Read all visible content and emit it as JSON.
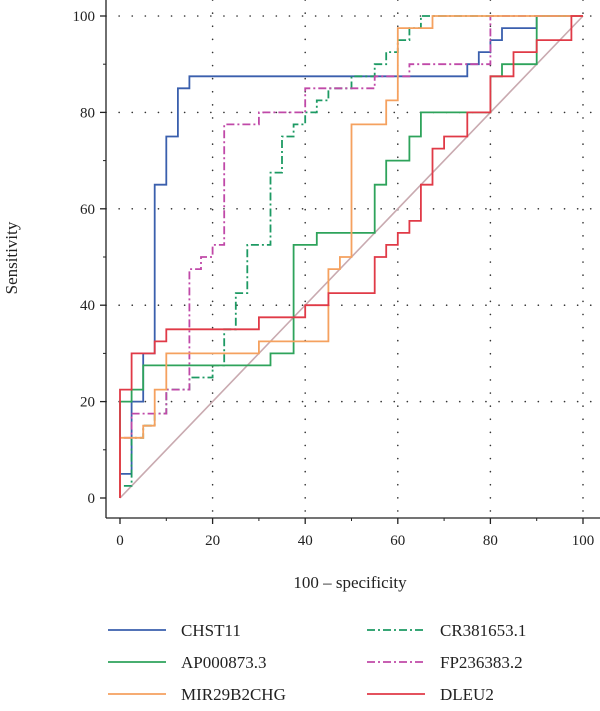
{
  "chart_data": {
    "type": "line",
    "title": "",
    "xlabel": "100 – specificity",
    "ylabel": "Sensitivity",
    "xlim": [
      0,
      100
    ],
    "ylim": [
      0,
      100
    ],
    "xticks": [
      0,
      20,
      40,
      60,
      80,
      100
    ],
    "yticks": [
      0,
      20,
      40,
      60,
      80,
      100
    ],
    "xtick_labels": [
      "0",
      "20",
      "40",
      "60",
      "80",
      "100"
    ],
    "ytick_labels": [
      "0",
      "20",
      "40",
      "60",
      "80",
      "100"
    ],
    "grid": "dotted",
    "legend_position": "bottom",
    "reference_line": {
      "x": [
        0,
        100
      ],
      "y": [
        0,
        100
      ],
      "color": "#c9aab0"
    },
    "series": [
      {
        "name": "CHST11",
        "color": "#3a5fad",
        "dash": "solid",
        "x": [
          0,
          0,
          2.5,
          2.5,
          5,
          5,
          7.5,
          7.5,
          10,
          10,
          12.5,
          12.5,
          15,
          15,
          75,
          75,
          77.5,
          77.5,
          80,
          80,
          82.5,
          82.5,
          90,
          90,
          100
        ],
        "y": [
          0,
          5,
          5,
          20,
          20,
          30,
          30,
          65,
          65,
          75,
          75,
          85,
          85,
          87.5,
          87.5,
          90,
          90,
          92.5,
          92.5,
          95,
          95,
          97.5,
          97.5,
          100,
          100
        ]
      },
      {
        "name": "CR381653.1",
        "color": "#1d9a63",
        "dash": "8 3 2 3",
        "x": [
          0,
          0,
          2.5,
          2.5,
          5,
          5,
          7.5,
          7.5,
          10,
          10,
          15,
          15,
          20,
          20,
          22.5,
          22.5,
          25,
          25,
          27.5,
          27.5,
          32.5,
          32.5,
          35,
          35,
          37.5,
          37.5,
          40,
          40,
          42.5,
          42.5,
          45,
          45,
          50,
          50,
          55,
          55,
          57.5,
          57.5,
          60,
          60,
          62.5,
          62.5,
          65,
          65,
          70,
          70,
          100
        ],
        "y": [
          0,
          2.5,
          2.5,
          12.5,
          12.5,
          15,
          15,
          17.5,
          17.5,
          22.5,
          22.5,
          25,
          25,
          27.5,
          27.5,
          35,
          35,
          42.5,
          42.5,
          52.5,
          52.5,
          67.5,
          67.5,
          75,
          75,
          77.5,
          77.5,
          80,
          80,
          82.5,
          82.5,
          85,
          85,
          87.5,
          87.5,
          90,
          90,
          92.5,
          92.5,
          95,
          95,
          97.5,
          97.5,
          100,
          100,
          100,
          100
        ]
      },
      {
        "name": "AP000873.3",
        "color": "#2ea35b",
        "dash": "solid",
        "x": [
          0,
          0,
          2.5,
          2.5,
          5,
          5,
          32.5,
          32.5,
          37.5,
          37.5,
          42.5,
          42.5,
          55,
          55,
          57.5,
          57.5,
          62.5,
          62.5,
          65,
          65,
          80,
          80,
          82.5,
          82.5,
          90,
          90,
          100
        ],
        "y": [
          0,
          20,
          20,
          22.5,
          22.5,
          27.5,
          27.5,
          30,
          30,
          52.5,
          52.5,
          55,
          55,
          65,
          65,
          70,
          70,
          75,
          75,
          80,
          80,
          87.5,
          87.5,
          90,
          90,
          100,
          100
        ]
      },
      {
        "name": "FP236383.2",
        "color": "#c049a8",
        "dash": "8 3 2 3",
        "x": [
          0,
          0,
          2.5,
          2.5,
          10,
          10,
          15,
          15,
          17.5,
          17.5,
          20,
          20,
          22.5,
          22.5,
          30,
          30,
          40,
          40,
          55,
          55,
          62.5,
          62.5,
          80,
          80,
          100
        ],
        "y": [
          0,
          12.5,
          12.5,
          17.5,
          17.5,
          22.5,
          22.5,
          47.5,
          47.5,
          50,
          50,
          52.5,
          52.5,
          77.5,
          77.5,
          80,
          80,
          85,
          85,
          87.5,
          87.5,
          90,
          90,
          100,
          100
        ]
      },
      {
        "name": "MIR29B2CHG",
        "color": "#f5a15f",
        "dash": "solid",
        "x": [
          0,
          0,
          5,
          5,
          7.5,
          7.5,
          10,
          10,
          20,
          20,
          30,
          30,
          45,
          45,
          47.5,
          47.5,
          50,
          50,
          57.5,
          57.5,
          60,
          60,
          65,
          65,
          67.5,
          67.5,
          100
        ],
        "y": [
          0,
          12.5,
          12.5,
          15,
          15,
          22.5,
          22.5,
          30,
          30,
          30,
          30,
          32.5,
          32.5,
          47.5,
          47.5,
          50,
          50,
          77.5,
          77.5,
          82.5,
          82.5,
          97.5,
          97.5,
          97.5,
          97.5,
          100,
          100
        ]
      },
      {
        "name": "DLEU2",
        "color": "#e03a47",
        "dash": "solid",
        "x": [
          0,
          0,
          2.5,
          2.5,
          7.5,
          7.5,
          10,
          10,
          25,
          25,
          30,
          30,
          35,
          35,
          40,
          40,
          45,
          45,
          55,
          55,
          57.5,
          57.5,
          60,
          60,
          62.5,
          62.5,
          65,
          65,
          67.5,
          67.5,
          70,
          70,
          75,
          75,
          80,
          80,
          85,
          85,
          90,
          90,
          97.5,
          97.5,
          100
        ],
        "y": [
          0,
          22.5,
          22.5,
          30,
          30,
          32.5,
          32.5,
          35,
          35,
          35,
          35,
          37.5,
          37.5,
          37.5,
          37.5,
          40,
          40,
          42.5,
          42.5,
          50,
          50,
          52.5,
          52.5,
          55,
          55,
          57.5,
          57.5,
          65,
          65,
          72.5,
          72.5,
          75,
          75,
          80,
          80,
          87.5,
          87.5,
          92.5,
          92.5,
          95,
          95,
          100,
          100
        ]
      }
    ]
  },
  "legend": [
    {
      "label": "CHST11",
      "color": "#3a5fad",
      "dash": "solid"
    },
    {
      "label": "CR381653.1",
      "color": "#1d9a63",
      "dash": "8 3 2 3"
    },
    {
      "label": "AP000873.3",
      "color": "#2ea35b",
      "dash": "solid"
    },
    {
      "label": "FP236383.2",
      "color": "#c049a8",
      "dash": "8 3 2 3"
    },
    {
      "label": "MIR29B2CHG",
      "color": "#f5a15f",
      "dash": "solid"
    },
    {
      "label": "DLEU2",
      "color": "#e03a47",
      "dash": "solid"
    }
  ]
}
